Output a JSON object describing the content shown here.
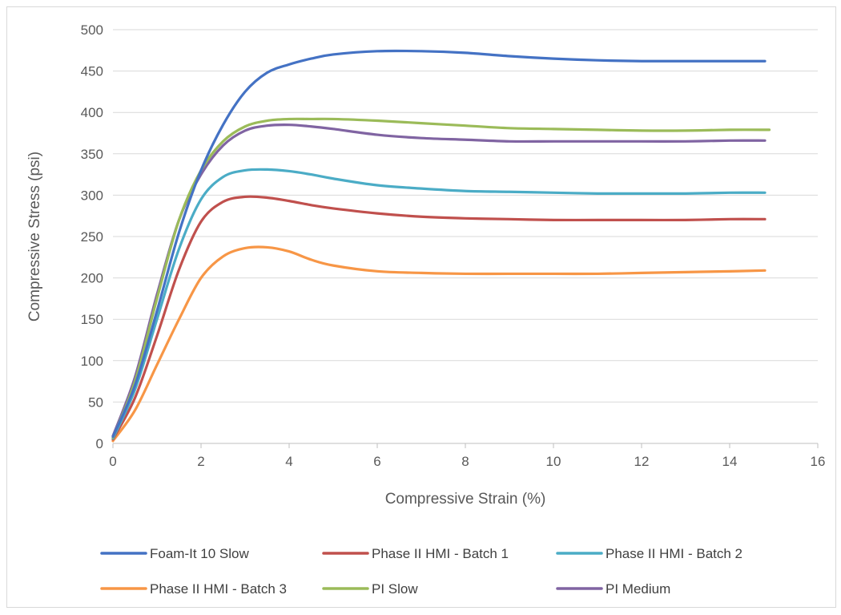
{
  "chart_data": {
    "type": "line",
    "title": "",
    "xlabel": "Compressive Strain (%)",
    "ylabel": "Compressive Stress (psi)",
    "xlim": [
      0,
      16
    ],
    "ylim": [
      0,
      500
    ],
    "x_ticks": [
      0,
      2,
      4,
      6,
      8,
      10,
      12,
      14,
      16
    ],
    "y_ticks": [
      0,
      50,
      100,
      150,
      200,
      250,
      300,
      350,
      400,
      450,
      500
    ],
    "grid": "horizontal",
    "legend_position": "bottom",
    "series": [
      {
        "name": "Foam-It 10 Slow",
        "color": "#4472C4",
        "x": [
          0,
          0.5,
          1,
          1.5,
          2,
          2.5,
          3,
          3.5,
          4,
          4.5,
          5,
          6,
          7,
          8,
          9,
          10,
          11,
          12,
          13,
          14,
          14.8
        ],
        "y": [
          8,
          70,
          160,
          255,
          330,
          385,
          425,
          448,
          458,
          465,
          470,
          474,
          474,
          472,
          468,
          465,
          463,
          462,
          462,
          462,
          462
        ]
      },
      {
        "name": "Phase II HMI - Batch 1",
        "color": "#C0504D",
        "x": [
          0,
          0.5,
          1,
          1.5,
          2,
          2.5,
          3,
          3.5,
          4,
          4.5,
          5,
          6,
          7,
          8,
          9,
          10,
          11,
          12,
          13,
          14,
          14.8
        ],
        "y": [
          5,
          55,
          130,
          210,
          268,
          292,
          298,
          297,
          293,
          288,
          284,
          278,
          274,
          272,
          271,
          270,
          270,
          270,
          270,
          271,
          271
        ]
      },
      {
        "name": "Phase II HMI - Batch 2",
        "color": "#4BACC6",
        "x": [
          0,
          0.5,
          1,
          1.5,
          2,
          2.5,
          3,
          3.5,
          4,
          4.5,
          5,
          6,
          7,
          8,
          9,
          10,
          11,
          12,
          13,
          14,
          14.8
        ],
        "y": [
          6,
          65,
          150,
          235,
          295,
          322,
          330,
          331,
          329,
          325,
          320,
          312,
          308,
          305,
          304,
          303,
          302,
          302,
          302,
          303,
          303
        ]
      },
      {
        "name": "Phase II HMI - Batch 3",
        "color": "#F79646",
        "x": [
          0,
          0.5,
          1,
          1.5,
          2,
          2.5,
          3,
          3.5,
          4,
          4.5,
          5,
          6,
          7,
          8,
          9,
          10,
          11,
          12,
          13,
          14,
          14.8
        ],
        "y": [
          3,
          40,
          95,
          150,
          200,
          226,
          236,
          237,
          232,
          222,
          215,
          208,
          206,
          205,
          205,
          205,
          205,
          206,
          207,
          208,
          209
        ]
      },
      {
        "name": "PI Slow",
        "color": "#9BBB59",
        "x": [
          0,
          0.5,
          1,
          1.5,
          2,
          2.5,
          3,
          3.5,
          4,
          4.5,
          5,
          6,
          7,
          8,
          9,
          10,
          11,
          12,
          13,
          14,
          14.9
        ],
        "y": [
          7,
          75,
          175,
          270,
          330,
          365,
          383,
          390,
          392,
          392,
          392,
          390,
          387,
          384,
          381,
          380,
          379,
          378,
          378,
          379,
          379
        ]
      },
      {
        "name": "PI Medium",
        "color": "#8064A2",
        "x": [
          0,
          0.5,
          1,
          1.5,
          2,
          2.5,
          3,
          3.5,
          4,
          4.5,
          5,
          6,
          7,
          8,
          9,
          10,
          11,
          12,
          13,
          14,
          14.8
        ],
        "y": [
          9,
          80,
          180,
          270,
          325,
          360,
          378,
          384,
          385,
          383,
          380,
          373,
          369,
          367,
          365,
          365,
          365,
          365,
          365,
          366,
          366
        ]
      }
    ]
  }
}
